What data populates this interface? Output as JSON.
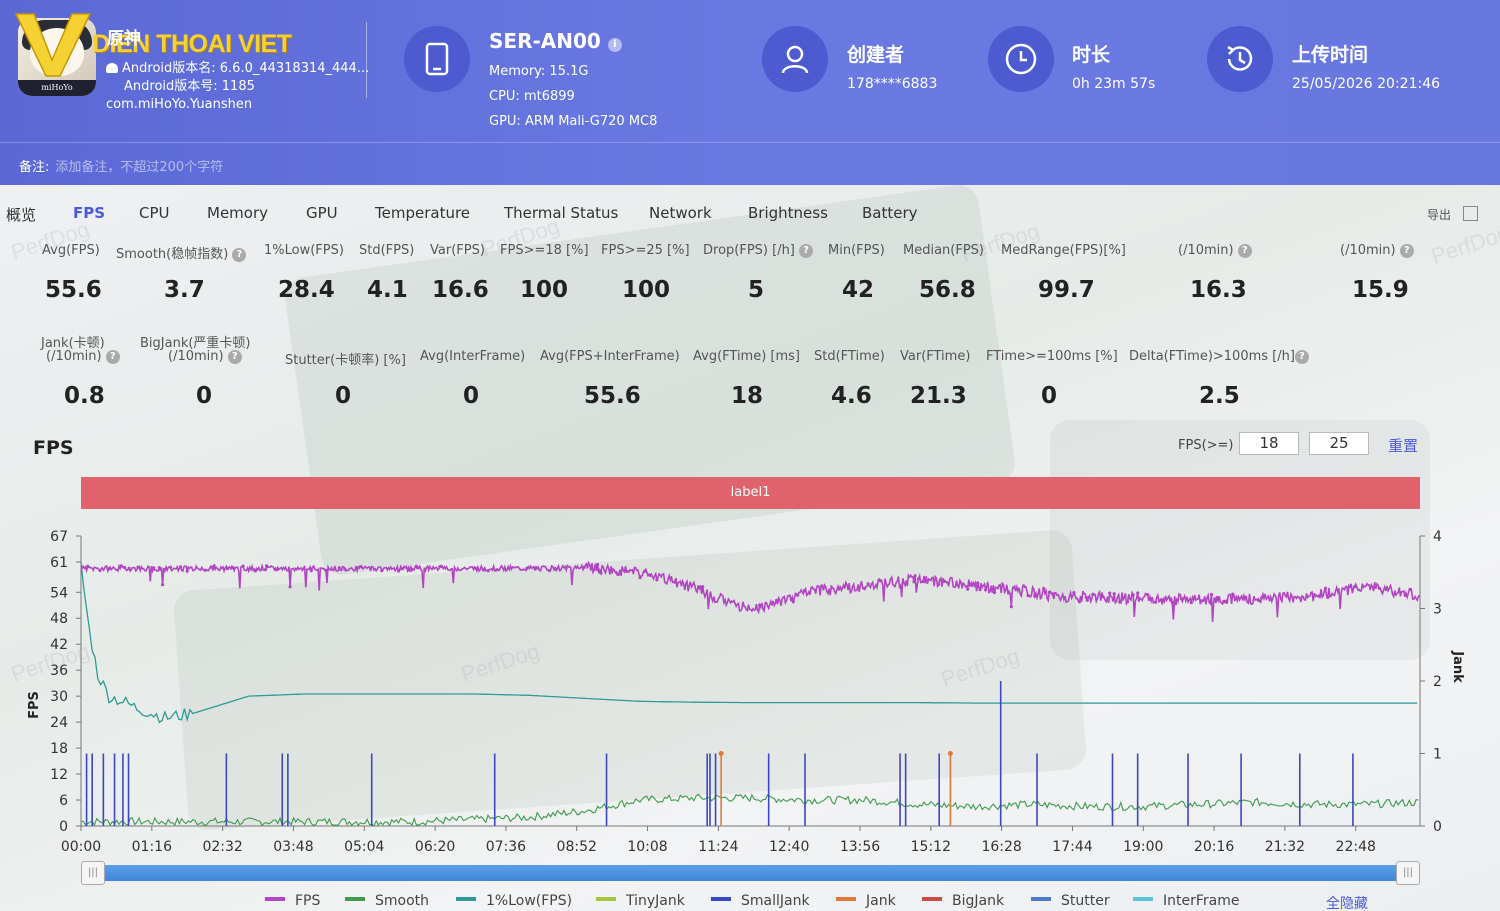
{
  "header": {
    "app_icon_tag": "miHoYo",
    "logo_text": "DIEN THOAI VIET",
    "app_name": "原神",
    "android_version_name": "Android版本名: 6.6.0_44318314_444...",
    "android_version_code": "Android版本号: 1185",
    "package": "com.miHoYo.Yuanshen",
    "device_name": "SER-AN00",
    "memory": "Memory: 15.1G",
    "cpu": "CPU: mt6899",
    "gpu": "GPU: ARM Mali-G720 MC8",
    "creator_title": "创建者",
    "creator_value": "178****6883",
    "duration_title": "时长",
    "duration_value": "0h 23m 57s",
    "upload_title": "上传时间",
    "upload_value": "25/05/2026 20:21:46",
    "remark_label": "备注:",
    "remark_placeholder": "添加备注，不超过200个字符"
  },
  "tabs": [
    "概览",
    "FPS",
    "CPU",
    "Memory",
    "GPU",
    "Temperature",
    "Thermal Status",
    "Network",
    "Brightness",
    "Battery"
  ],
  "active_tab": "FPS",
  "export_label": "导出",
  "stats_row1": [
    {
      "label": "Avg(FPS)",
      "value": "55.6"
    },
    {
      "label": "Smooth(稳帧指数)",
      "value": "3.7"
    },
    {
      "label": "1%Low(FPS)",
      "value": "28.4"
    },
    {
      "label": "Std(FPS)",
      "value": "4.1"
    },
    {
      "label": "Var(FPS)",
      "value": "16.6"
    },
    {
      "label": "FPS>=18 [%]",
      "value": "100"
    },
    {
      "label": "FPS>=25 [%]",
      "value": "100"
    },
    {
      "label": "Drop(FPS) [/h]",
      "value": "5"
    },
    {
      "label": "Min(FPS)",
      "value": "42"
    },
    {
      "label": "Median(FPS)",
      "value": "56.8"
    },
    {
      "label": "MedRange(FPS)[%]",
      "value": "99.7"
    },
    {
      "label": "(/10min)",
      "value": "16.3"
    },
    {
      "label": "(/10min)",
      "value": "15.9"
    }
  ],
  "stats_row2": [
    {
      "label": "Jank(卡顿)",
      "label2": "(/10min)",
      "value": "0.8"
    },
    {
      "label": "BigJank(严重卡顿)",
      "label2": "(/10min)",
      "value": "0"
    },
    {
      "label": "Stutter(卡顿率) [%]",
      "value": "0"
    },
    {
      "label": "Avg(InterFrame)",
      "value": "0"
    },
    {
      "label": "Avg(FPS+InterFrame)",
      "value": "55.6"
    },
    {
      "label": "Avg(FTime) [ms]",
      "value": "18"
    },
    {
      "label": "Std(FTime)",
      "value": "4.6"
    },
    {
      "label": "Var(FTime)",
      "value": "21.3"
    },
    {
      "label": "FTime>=100ms [%]",
      "value": "0"
    },
    {
      "label": "Delta(FTime)>100ms [/h]",
      "value": "2.5"
    }
  ],
  "fps_section": {
    "title": "FPS",
    "threshold_label": "FPS(>=)",
    "threshold_1": "18",
    "threshold_2": "25",
    "reset_label": "重置",
    "band_label": "label1"
  },
  "chart_data": {
    "type": "line",
    "ylabel": "FPS",
    "y2label": "Jank",
    "x_ticks": [
      "00:00",
      "01:16",
      "02:32",
      "03:48",
      "05:04",
      "06:20",
      "07:36",
      "08:52",
      "10:08",
      "11:24",
      "12:40",
      "13:56",
      "15:12",
      "16:28",
      "17:44",
      "19:00",
      "20:16",
      "21:32",
      "22:48"
    ],
    "y_ticks": [
      0,
      6,
      12,
      18,
      24,
      30,
      36,
      42,
      48,
      54,
      61,
      67
    ],
    "y2_ticks": [
      0,
      1,
      2,
      3,
      4
    ],
    "ylim": [
      0,
      67
    ],
    "y2lim": [
      0,
      4
    ],
    "series": [
      {
        "name": "FPS",
        "color": "#b146c2",
        "x_min": [
          0,
          2,
          4,
          6,
          8,
          9,
          10,
          11,
          11.5,
          12,
          12.5,
          13,
          14,
          15,
          16,
          17,
          17.5,
          18,
          19,
          20,
          21,
          22,
          23,
          23.95
        ],
        "values": [
          59.5,
          59.5,
          59.5,
          59.5,
          59.5,
          59.6,
          58.5,
          55,
          52,
          50,
          52,
          54,
          55.5,
          57,
          55.5,
          54,
          53,
          53,
          52.5,
          52.5,
          52.5,
          53,
          55.5,
          53
        ]
      },
      {
        "name": "Smooth",
        "color": "#3f9a4c",
        "x_min": [
          0,
          1,
          2,
          3,
          4,
          5,
          6,
          7,
          8,
          9,
          10,
          11,
          12,
          13,
          14,
          15,
          16,
          17,
          18,
          19,
          20,
          21,
          22,
          23,
          23.95
        ],
        "values": [
          1,
          1,
          1,
          1,
          1,
          1,
          1,
          1.5,
          2,
          3.5,
          6,
          6.5,
          6.5,
          6,
          6,
          5,
          4.5,
          5,
          4.5,
          4.5,
          5,
          5.5,
          5,
          5,
          5.5
        ]
      },
      {
        "name": "1%Low(FPS)",
        "color": "#2f9a96",
        "x_min": [
          0,
          0.15,
          0.3,
          0.5,
          0.8,
          1,
          1.5,
          2,
          3,
          4,
          5,
          6,
          7,
          8,
          9,
          10,
          11,
          12,
          13,
          14,
          15,
          16,
          17,
          18,
          19,
          20,
          21,
          22,
          23,
          23.95
        ],
        "values": [
          60,
          45,
          35,
          30,
          28.5,
          27.2,
          25,
          26,
          30,
          30.5,
          30.5,
          30.5,
          30.5,
          30.2,
          29.5,
          28.8,
          28.6,
          28.5,
          28.5,
          28.5,
          28.5,
          28.4,
          28.4,
          28.4,
          28.4,
          28.4,
          28.4,
          28.4,
          28.4,
          28.4
        ]
      },
      {
        "name": "TinyJank",
        "color": "#a5c83a"
      },
      {
        "name": "SmallJank",
        "color": "#3c47c6",
        "spike_x_min": [
          0.1,
          0.2,
          0.4,
          0.6,
          0.75,
          0.85,
          2.6,
          3.6,
          3.7,
          5.2,
          7.4,
          9.4,
          11.2,
          11.25,
          11.35,
          12.3,
          12.95,
          14.65,
          14.75,
          15.35,
          16.45,
          17.1,
          18.45,
          18.9,
          19.8,
          20.75,
          21.8,
          22.75
        ],
        "spike_values": [
          1,
          1,
          1,
          1,
          1,
          1,
          1,
          1,
          1,
          1,
          1,
          1,
          1,
          1,
          1,
          1,
          1,
          1,
          1,
          1,
          2,
          1,
          1,
          1,
          1,
          1,
          1,
          1
        ]
      },
      {
        "name": "Jank",
        "color": "#e07a3a",
        "spike_x_min": [
          11.45,
          15.55
        ],
        "spike_values": [
          1,
          1
        ]
      },
      {
        "name": "BigJank",
        "color": "#d14a4a"
      },
      {
        "name": "Stutter",
        "color": "#4a78c8"
      },
      {
        "name": "InterFrame",
        "color": "#59c5d6"
      }
    ],
    "legend_position": "bottom",
    "hide_all_label": "全隐藏",
    "grid": false
  }
}
